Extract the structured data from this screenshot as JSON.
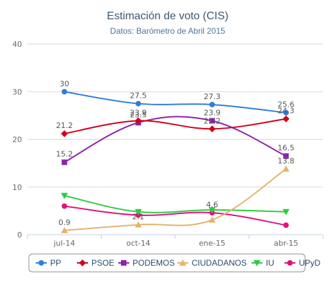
{
  "chart_data": {
    "type": "line",
    "title": "Estimación de voto (CIS)",
    "subtitle": "Datos: Barómetro de Abril 2015",
    "categories": [
      "jul-14",
      "oct-14",
      "ene-15",
      "abr-15"
    ],
    "ylim": [
      0,
      40
    ],
    "yticks": [
      0,
      10,
      20,
      30,
      40
    ],
    "grid": true,
    "legend_position": "bottom",
    "series": [
      {
        "name": "PP",
        "color": "#2f7ed8",
        "marker": "circle",
        "values": [
          30,
          27.5,
          27.3,
          25.6
        ],
        "labels": [
          "30",
          "27.5",
          "27.3",
          "25.6"
        ]
      },
      {
        "name": "PSOE",
        "color": "#d0021b",
        "marker": "diamond",
        "values": [
          21.2,
          23.9,
          22.2,
          24.3
        ],
        "labels": [
          "21.2",
          "23.9",
          "22.2",
          "24.3"
        ]
      },
      {
        "name": "PODEMOS",
        "color": "#8e24aa",
        "marker": "square",
        "values": [
          15.2,
          23.5,
          23.9,
          16.5
        ],
        "labels": [
          "15.2",
          "23.5",
          "23.9",
          "16.5"
        ]
      },
      {
        "name": "CIUDADANOS",
        "color": "#e5b36b",
        "marker": "triangle",
        "values": [
          0.9,
          2.1,
          3.1,
          13.8
        ],
        "labels": [
          "0.9",
          "2.1",
          "",
          "13.8"
        ]
      },
      {
        "name": "IU",
        "color": "#2ecc40",
        "marker": "triangle-down",
        "values": [
          8.2,
          4.8,
          5.2,
          4.8
        ],
        "labels": [
          "",
          "",
          "",
          ""
        ]
      },
      {
        "name": "UPyD",
        "color": "#e0137e",
        "marker": "circle",
        "values": [
          6,
          4.1,
          4.6,
          2
        ],
        "labels": [
          "",
          "",
          "4.6",
          ""
        ]
      }
    ]
  }
}
